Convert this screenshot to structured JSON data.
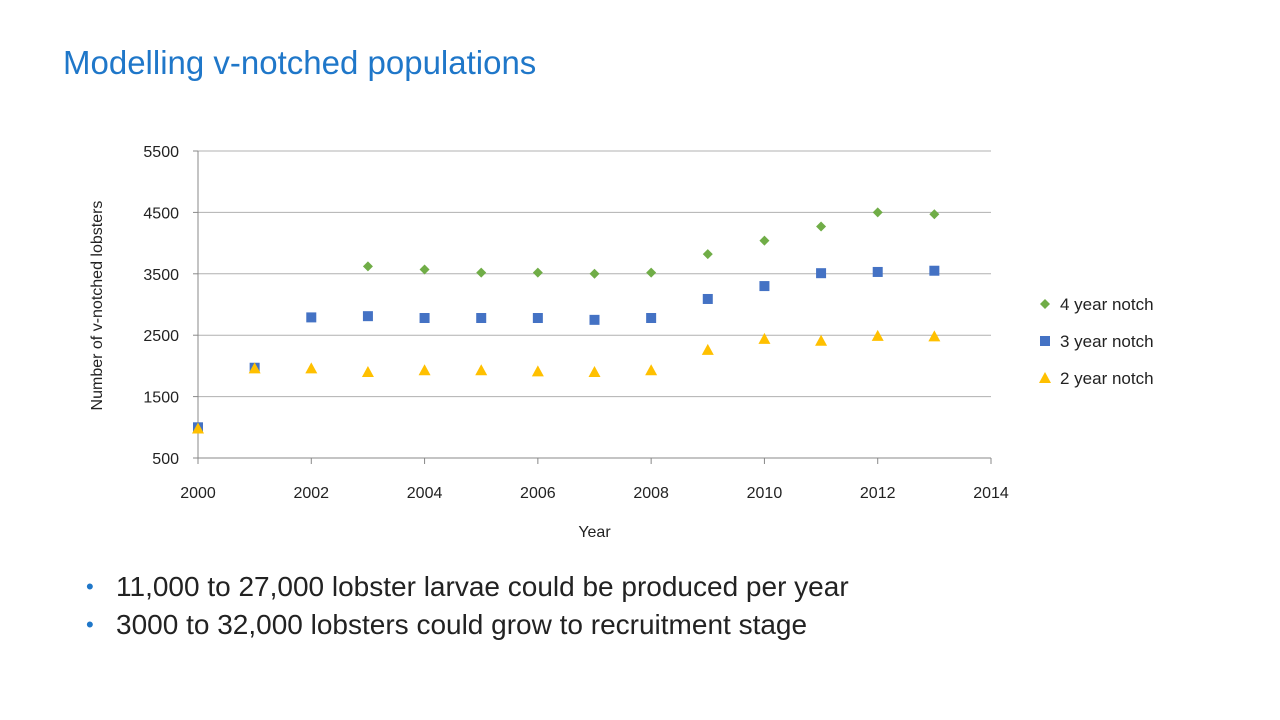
{
  "slide": {
    "title": "Modelling v-notched populations",
    "bullets": [
      " 11,000 to 27,000 lobster larvae could be produced per year",
      "3000 to 32,000 lobsters could grow to recruitment stage"
    ],
    "bullet_glyph": "•"
  },
  "colors": {
    "title": "#1f77c9",
    "bullet": "#1f77c9",
    "four_year": "#70ad47",
    "three_year": "#4472c4",
    "two_year": "#ffc000",
    "grid": "#b0b0b0"
  },
  "chart_data": {
    "type": "scatter",
    "xlabel": "Year",
    "ylabel": "Number of v-notched lobsters",
    "xlim": [
      2000,
      2014
    ],
    "ylim": [
      500,
      5500
    ],
    "xticks": [
      2000,
      2002,
      2004,
      2006,
      2008,
      2010,
      2012,
      2014
    ],
    "yticks": [
      500,
      1500,
      2500,
      3500,
      4500,
      5500
    ],
    "grid": "horizontal",
    "legend_position": "right",
    "series": [
      {
        "name": "4 year notch",
        "marker": "diamond",
        "color": "#70ad47",
        "x": [
          2003,
          2004,
          2005,
          2006,
          2007,
          2008,
          2009,
          2010,
          2011,
          2012,
          2013
        ],
        "y": [
          3620,
          3570,
          3520,
          3520,
          3500,
          3520,
          3820,
          4040,
          4270,
          4500,
          4470
        ]
      },
      {
        "name": "3 year notch",
        "marker": "square",
        "color": "#4472c4",
        "x": [
          2000,
          2001,
          2002,
          2003,
          2004,
          2005,
          2006,
          2007,
          2008,
          2009,
          2010,
          2011,
          2012,
          2013
        ],
        "y": [
          1000,
          1970,
          2790,
          2810,
          2780,
          2780,
          2780,
          2750,
          2780,
          3090,
          3300,
          3510,
          3530,
          3550
        ]
      },
      {
        "name": "2 year notch",
        "marker": "triangle",
        "color": "#ffc000",
        "x": [
          2000,
          2001,
          2002,
          2003,
          2004,
          2005,
          2006,
          2007,
          2008,
          2009,
          2010,
          2011,
          2012,
          2013
        ],
        "y": [
          980,
          1960,
          1960,
          1900,
          1930,
          1930,
          1910,
          1900,
          1930,
          2260,
          2440,
          2410,
          2490,
          2480
        ]
      }
    ]
  }
}
